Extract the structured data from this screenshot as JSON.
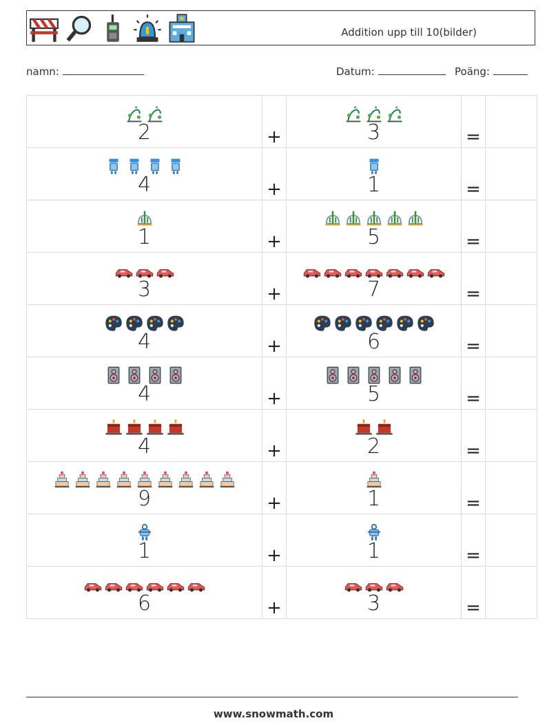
{
  "header": {
    "icons": [
      "road-barrier-icon",
      "magnifying-glass-icon",
      "walkie-talkie-icon",
      "police-siren-icon",
      "police-station-icon"
    ],
    "title": "Addition upp till 10(bilder)"
  },
  "fields": {
    "name_label": "namn:",
    "date_label": "Datum:",
    "score_label": "Poäng:"
  },
  "operators": {
    "plus": "+",
    "equals": "="
  },
  "problems": [
    {
      "a": 2,
      "a_icon": "plant-sprout-icon",
      "b": 3,
      "b_icon": "plant-sprout-icon"
    },
    {
      "a": 4,
      "a_icon": "robot-icon",
      "b": 1,
      "b_icon": "robot-icon"
    },
    {
      "a": 1,
      "a_icon": "cactus-dome-icon",
      "b": 5,
      "b_icon": "cactus-dome-icon"
    },
    {
      "a": 3,
      "a_icon": "red-car-icon",
      "b": 7,
      "b_icon": "red-car-icon"
    },
    {
      "a": 4,
      "a_icon": "paint-palette-icon",
      "b": 6,
      "b_icon": "paint-palette-icon"
    },
    {
      "a": 4,
      "a_icon": "speaker-icon",
      "b": 5,
      "b_icon": "speaker-icon"
    },
    {
      "a": 4,
      "a_icon": "birthday-cake-icon",
      "b": 2,
      "b_icon": "birthday-cake-icon"
    },
    {
      "a": 9,
      "a_icon": "wedding-cake-icon",
      "b": 1,
      "b_icon": "wedding-cake-icon"
    },
    {
      "a": 1,
      "a_icon": "small-robot-icon",
      "b": 1,
      "b_icon": "small-robot-icon"
    },
    {
      "a": 6,
      "a_icon": "red-car-icon",
      "b": 3,
      "b_icon": "red-car-icon"
    }
  ],
  "colors": {
    "border": "#dcdcdc",
    "text": "#222222",
    "car": "#e05a5a",
    "robot": "#3a8fd6",
    "palette": "#2c3e50",
    "speaker": "#6f7f8f",
    "cake": "#c0392b"
  },
  "footer": {
    "url": "www.snowmath.com"
  }
}
